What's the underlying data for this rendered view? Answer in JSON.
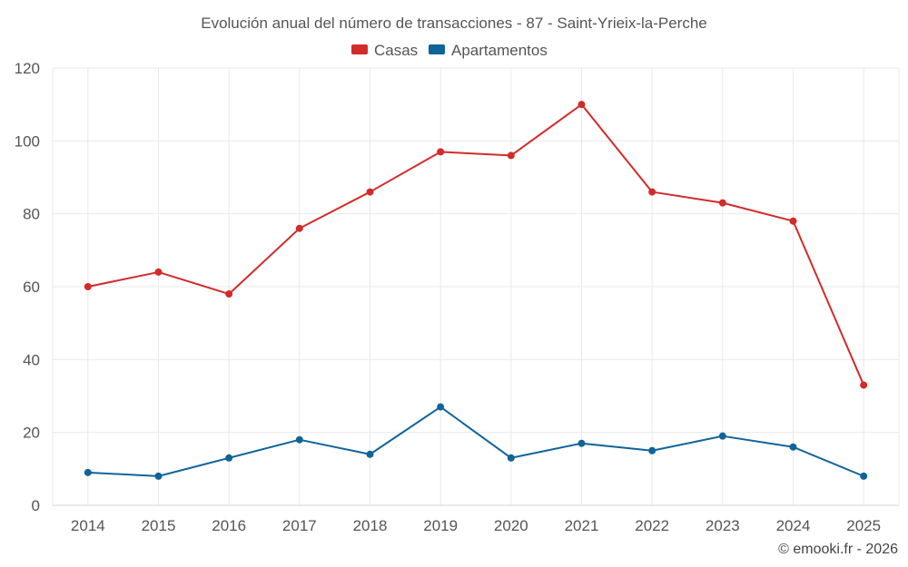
{
  "chart_data": {
    "type": "line",
    "title": "Evolución anual del número de transacciones - 87 - Saint-Yrieix-la-Perche",
    "categories": [
      "2014",
      "2015",
      "2016",
      "2017",
      "2018",
      "2019",
      "2020",
      "2021",
      "2022",
      "2023",
      "2024",
      "2025"
    ],
    "series": [
      {
        "name": "Casas",
        "color": "#d32a2a",
        "values": [
          60,
          64,
          58,
          76,
          86,
          97,
          96,
          110,
          86,
          83,
          78,
          33
        ]
      },
      {
        "name": "Apartamentos",
        "color": "#0f6499",
        "values": [
          9,
          8,
          13,
          18,
          14,
          27,
          13,
          17,
          15,
          19,
          16,
          8
        ]
      }
    ],
    "ylim": [
      0,
      120
    ],
    "yticks": [
      0,
      20,
      40,
      60,
      80,
      100,
      120
    ],
    "grid": true,
    "legend": "top-center",
    "xlabel": "",
    "ylabel": ""
  },
  "credit": "© emooki.fr - 2026"
}
